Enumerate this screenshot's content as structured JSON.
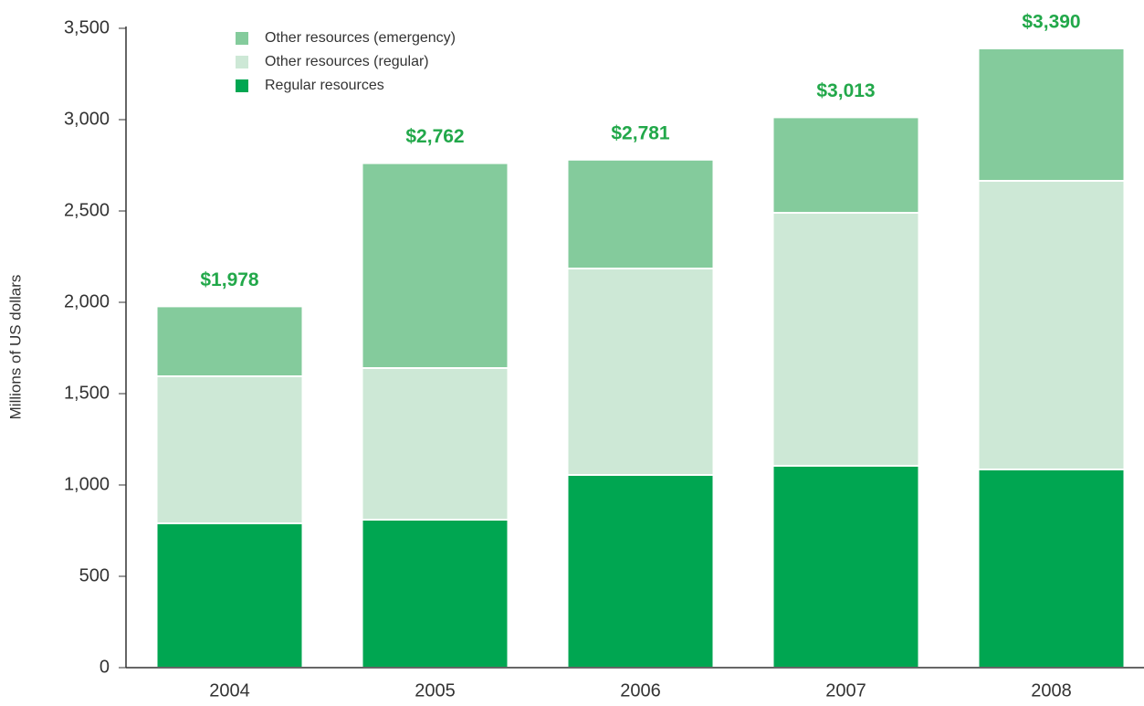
{
  "chart_data": {
    "type": "stacked_bar",
    "y_label": "Millions of US dollars",
    "categories": [
      "2004",
      "2005",
      "2006",
      "2007",
      "2008"
    ],
    "series": [
      {
        "name": "Regular resources",
        "color": "#00a651",
        "values": [
          790,
          810,
          1055,
          1105,
          1085
        ]
      },
      {
        "name": "Other resources (regular)",
        "color": "#cde8d6",
        "values": [
          805,
          830,
          1130,
          1385,
          1580
        ]
      },
      {
        "name": "Other resources (emergency)",
        "color": "#84cb9c",
        "values": [
          383,
          1122,
          596,
          523,
          725
        ]
      }
    ],
    "totals": [
      1978,
      2762,
      2781,
      3013,
      3390
    ],
    "total_labels": [
      "$1,978",
      "$2,762",
      "$2,781",
      "$3,013",
      "$3,390"
    ],
    "total_label_color": "#22a84a",
    "ylim": [
      0,
      3500
    ],
    "yticks": [
      0,
      500,
      {
        "value": 1000,
        "label": "1,000"
      },
      {
        "value": 1500,
        "label": "1,500"
      },
      {
        "value": 2000,
        "label": "2,000"
      },
      {
        "value": 2500,
        "label": "2,500"
      },
      {
        "value": 3000,
        "label": "3,000"
      },
      {
        "value": 3500,
        "label": "3,500"
      }
    ],
    "legend": "top-left"
  }
}
